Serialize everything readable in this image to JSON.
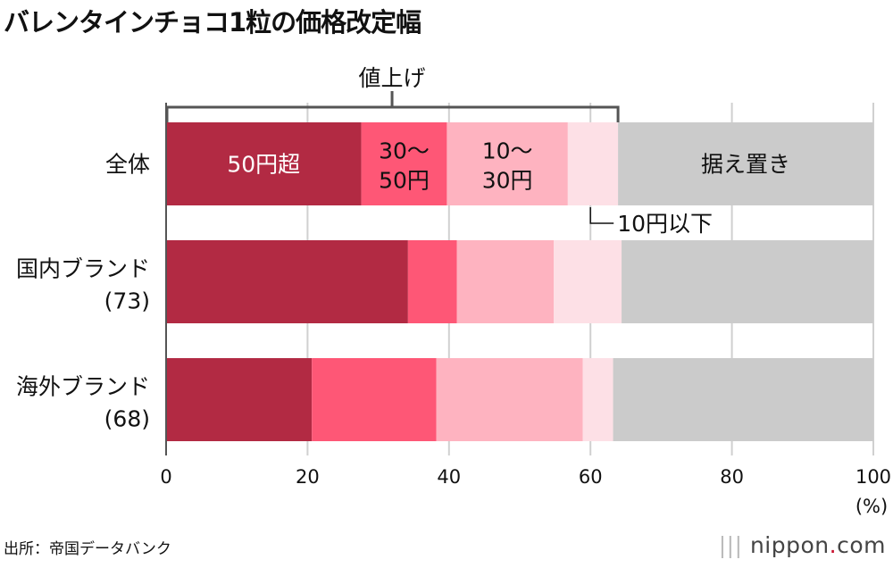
{
  "title": "バレンタインチョコ1粒の価格改定幅",
  "source": "出所：帝国データバンク",
  "logo": "nippon.com",
  "chart_data": {
    "type": "bar",
    "orientation": "horizontal",
    "stacked": true,
    "categories": [
      "全体",
      "国内ブランド\n(73)",
      "海外ブランド\n(68)"
    ],
    "series": [
      {
        "name": "50円超",
        "values": [
          27.6,
          34.2,
          20.6
        ],
        "color": "#b22a43"
      },
      {
        "name": "30〜\n50円",
        "values": [
          12.1,
          6.9,
          17.6
        ],
        "color": "#fe5776"
      },
      {
        "name": "10〜\n30円",
        "values": [
          17.1,
          13.7,
          20.7
        ],
        "color": "#feb3c0"
      },
      {
        "name": "10円以下",
        "values": [
          7.1,
          9.6,
          4.3
        ],
        "color": "#fde0e6"
      },
      {
        "name": "据え置き",
        "values": [
          36.1,
          35.6,
          36.8
        ],
        "color": "#cbcbcb"
      }
    ],
    "bracket_label": "値上げ",
    "xlim": [
      0,
      100
    ],
    "xticks": [
      0,
      20,
      40,
      60,
      80,
      100
    ],
    "xunit": "(%)",
    "grid": true
  }
}
